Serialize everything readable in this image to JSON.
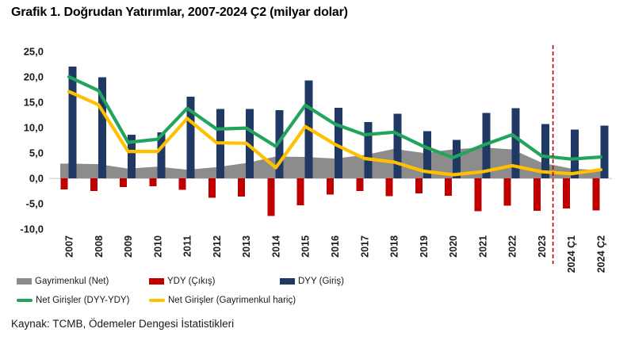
{
  "title": "Grafik 1. Doğrudan Yatırımlar, 2007-2024 Ç2 (milyar dolar)",
  "source": "Kaynak: TCMB, Ödemeler Dengesi İstatistikleri",
  "legend": [
    {
      "label": "Gayrimenkul (Net)",
      "type": "bar",
      "color": "#8C8C8C"
    },
    {
      "label": "YDY (Çıkış)",
      "type": "bar",
      "color": "#C00000"
    },
    {
      "label": "DYY (Giriş)",
      "type": "bar",
      "color": "#1F3864"
    },
    {
      "label": "Net Girişler (DYY-YDY)",
      "type": "line",
      "color": "#22A45C"
    },
    {
      "label": "Net Girişler (Gayrimenkul hariç)",
      "type": "line",
      "color": "#FFC000"
    }
  ],
  "chart_data": {
    "type": "combo: clustered bars + area + lines",
    "categories": [
      "2007",
      "2008",
      "2009",
      "2010",
      "2011",
      "2012",
      "2013",
      "2014",
      "2015",
      "2016",
      "2017",
      "2018",
      "2019",
      "2020",
      "2021",
      "2022",
      "2023",
      "2024 Ç1",
      "2024 Ç2"
    ],
    "series": [
      {
        "name": "DYY (Giriş)",
        "type": "bar",
        "color": "#1F3864",
        "values": [
          22.0,
          19.9,
          8.6,
          9.1,
          16.1,
          13.7,
          13.7,
          13.4,
          19.3,
          13.9,
          11.1,
          12.7,
          9.3,
          7.6,
          12.9,
          13.8,
          10.7,
          9.6,
          10.4
        ]
      },
      {
        "name": "YDY (Çıkış)",
        "type": "bar",
        "color": "#C00000",
        "values": [
          -2.2,
          -2.5,
          -1.7,
          -1.6,
          -2.3,
          -3.8,
          -3.6,
          -7.4,
          -5.3,
          -3.2,
          -2.5,
          -3.5,
          -3.0,
          -3.4,
          -6.5,
          -5.4,
          -6.4,
          -5.9,
          -6.3
        ]
      },
      {
        "name": "Gayrimenkul (Net)",
        "type": "area",
        "color": "#8C8C8C",
        "values": [
          2.9,
          2.8,
          1.9,
          2.3,
          1.7,
          2.2,
          3.0,
          4.3,
          4.2,
          3.9,
          4.6,
          5.8,
          5.0,
          5.7,
          6.1,
          5.7,
          3.1,
          1.9,
          1.6
        ]
      },
      {
        "name": "Net Girişler (DYY-YDY)",
        "type": "line",
        "color": "#22A45C",
        "values": [
          20.0,
          17.3,
          7.1,
          7.7,
          13.8,
          9.7,
          9.9,
          6.3,
          14.4,
          10.7,
          8.6,
          9.1,
          6.3,
          4.1,
          6.5,
          8.6,
          4.4,
          3.8,
          4.2
        ]
      },
      {
        "name": "Net Girişler (Gayrimenkul hariç)",
        "type": "line",
        "color": "#FFC000",
        "values": [
          17.1,
          14.5,
          5.3,
          5.3,
          11.8,
          7.0,
          6.9,
          2.1,
          10.2,
          6.7,
          3.9,
          3.2,
          1.4,
          0.7,
          1.3,
          2.5,
          1.3,
          0.9,
          1.7
        ]
      }
    ],
    "ylim": [
      -10,
      25
    ],
    "yticks": [
      25,
      20,
      15,
      10,
      5,
      0,
      -5,
      -10
    ],
    "ytick_labels": [
      "25,0",
      "20,0",
      "15,0",
      "10,0",
      "5,0",
      "0,0",
      "-5,0",
      "-10,0"
    ],
    "grid": false,
    "zero_line_color": "#D9D9D9",
    "divider_after": "2023",
    "divider_color": "#C00000",
    "divider_style": "dashed",
    "legend_position": "bottom"
  }
}
